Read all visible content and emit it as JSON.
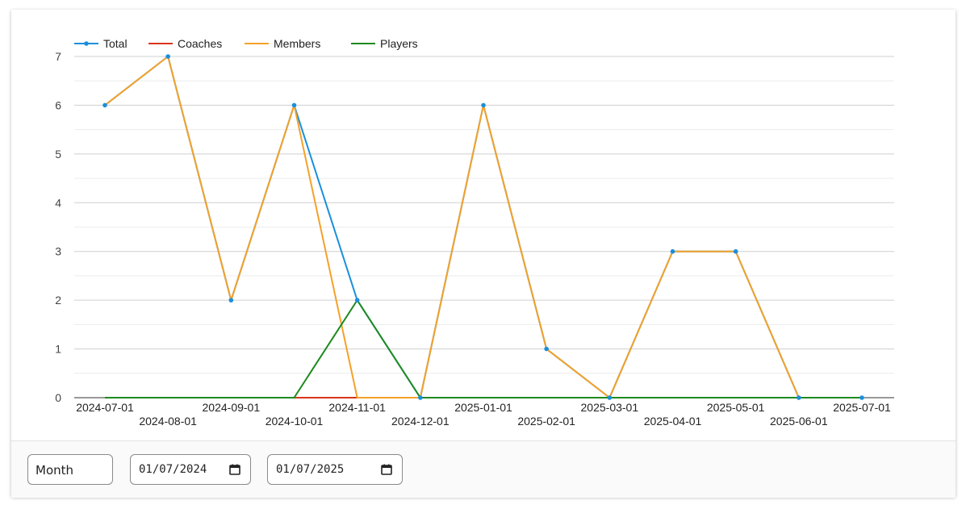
{
  "chart_data": {
    "type": "line",
    "x": [
      "2024-07-01",
      "2024-08-01",
      "2024-09-01",
      "2024-10-01",
      "2024-11-01",
      "2024-12-01",
      "2025-01-01",
      "2025-02-01",
      "2025-03-01",
      "2025-04-01",
      "2025-05-01",
      "2025-06-01",
      "2025-07-01"
    ],
    "series": [
      {
        "name": "Total",
        "color": "#1a8fdb",
        "markers": true,
        "values": [
          6,
          7,
          2,
          6,
          2,
          0,
          6,
          1,
          0,
          3,
          3,
          0,
          0
        ]
      },
      {
        "name": "Coaches",
        "color": "#d9341a",
        "markers": false,
        "values": [
          0,
          0,
          0,
          0,
          0,
          0,
          0,
          0,
          0,
          0,
          0,
          0,
          0
        ]
      },
      {
        "name": "Members",
        "color": "#f5a129",
        "markers": false,
        "values": [
          6,
          7,
          2,
          6,
          0,
          0,
          6,
          1,
          0,
          3,
          3,
          0,
          null
        ]
      },
      {
        "name": "Players",
        "color": "#1e8a1e",
        "markers": false,
        "values": [
          0,
          0,
          0,
          0,
          2,
          0,
          0,
          0,
          0,
          0,
          0,
          0,
          0
        ]
      }
    ],
    "ylim": [
      0,
      7
    ],
    "yticks": [
      0,
      1,
      2,
      3,
      4,
      5,
      6,
      7
    ],
    "minor_grid": true,
    "legend_position": "top-left",
    "title": "",
    "xlabel": "",
    "ylabel": ""
  },
  "controls": {
    "period_select": "Month",
    "date_from": "01/07/2024",
    "date_to": "01/07/2025",
    "calendar_icon": "calendar-icon"
  }
}
